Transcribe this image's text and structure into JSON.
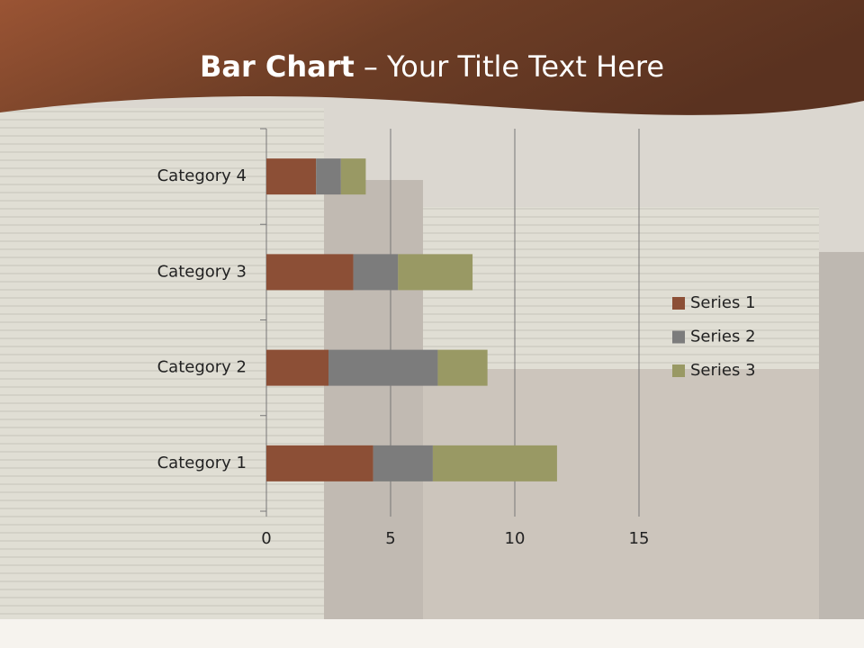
{
  "chart_data": {
    "type": "stacked-bar-horizontal",
    "title_parts": [
      "Bar Chart",
      "– Your Title Text Here"
    ],
    "categories": [
      "Category 1",
      "Category 2",
      "Category 3",
      "Category 4"
    ],
    "series": [
      {
        "name": "Series 1",
        "color": "#8c4f36",
        "values": [
          4.3,
          2.5,
          3.5,
          2.0
        ]
      },
      {
        "name": "Series 2",
        "color": "#7c7c7c",
        "values": [
          2.4,
          4.4,
          1.8,
          1.0
        ]
      },
      {
        "name": "Series 3",
        "color": "#999964",
        "values": [
          5.0,
          2.0,
          3.0,
          1.0
        ]
      }
    ],
    "xlim": [
      0,
      15
    ],
    "xticks": [
      0,
      5,
      10,
      15
    ],
    "grid": true,
    "legend": "right"
  }
}
